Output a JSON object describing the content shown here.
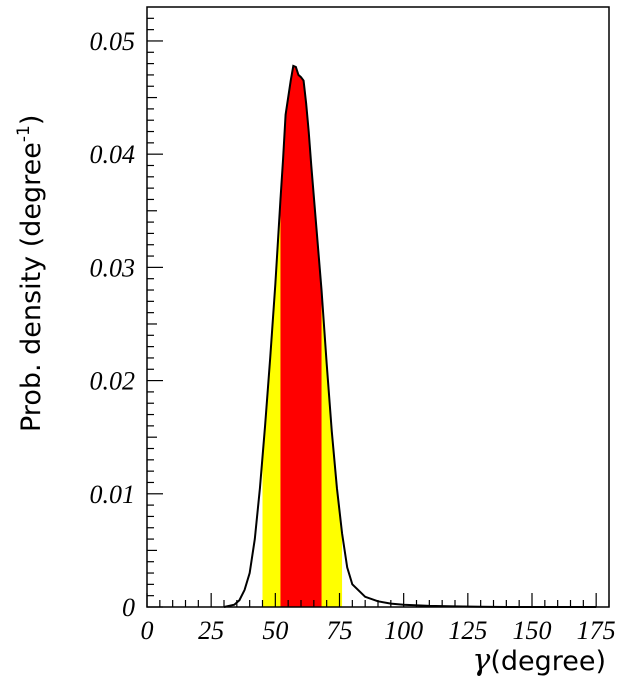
{
  "chart_data": {
    "type": "area",
    "xlabel_symbol": "γ",
    "xlabel_text": "(degree)",
    "ylabel_text": "Prob. density (degree",
    "ylabel_sup": "-1",
    "ylabel_close": ")",
    "xlim": [
      0,
      180
    ],
    "ylim": [
      0,
      0.053
    ],
    "x_ticks": [
      0,
      25,
      50,
      75,
      100,
      125,
      150,
      175
    ],
    "x_tick_labels": [
      "0",
      "25",
      "50",
      "75",
      "100",
      "125",
      "150",
      "175"
    ],
    "y_ticks": [
      0,
      0.01,
      0.02,
      0.03,
      0.04,
      0.05
    ],
    "y_tick_labels": [
      "0",
      "0.01",
      "0.02",
      "0.03",
      "0.04",
      "0.05"
    ],
    "grid": false,
    "series": [
      {
        "x": [
          30,
          34,
          36,
          38,
          40,
          42,
          44,
          46,
          48,
          50,
          52,
          53,
          54,
          55,
          56,
          57,
          58,
          59,
          60,
          61,
          62,
          63,
          64,
          66,
          68,
          70,
          72,
          74,
          76,
          78,
          80,
          85,
          90,
          95,
          100,
          110,
          120,
          130,
          140,
          175
        ],
        "y": [
          0,
          0.0002,
          0.0006,
          0.0015,
          0.003,
          0.006,
          0.0105,
          0.016,
          0.022,
          0.0285,
          0.036,
          0.0395,
          0.0435,
          0.045,
          0.0465,
          0.0478,
          0.0477,
          0.047,
          0.0468,
          0.0465,
          0.0445,
          0.042,
          0.039,
          0.0335,
          0.028,
          0.0215,
          0.0155,
          0.0105,
          0.0065,
          0.0035,
          0.002,
          0.0009,
          0.0005,
          0.0003,
          0.0002,
          0.0001,
          5e-05,
          2e-05,
          0,
          0
        ]
      }
    ],
    "bands": [
      {
        "x_range": [
          45,
          76
        ],
        "color": "#ffff00"
      },
      {
        "x_range": [
          52,
          68
        ],
        "color": "#ff0000"
      }
    ],
    "line_color": "#000000",
    "frame_color": "#000000"
  }
}
